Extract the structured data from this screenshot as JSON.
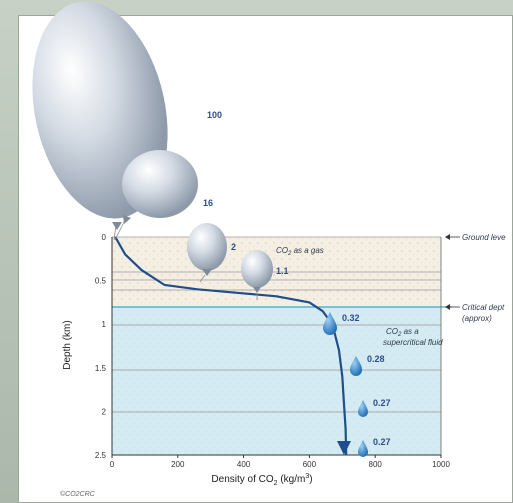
{
  "axes": {
    "ylabel": "Depth (km)",
    "xlabel_main": "Density of CO",
    "xlabel_sub": "2",
    "xlabel_unit": "(kg/m",
    "xlabel_unit_sup": "3",
    "xlabel_close": ")",
    "x_ticks": [
      "0",
      "200",
      "400",
      "600",
      "800",
      "1000"
    ],
    "y_ticks": [
      "0",
      "0.5",
      "1",
      "1.5",
      "2",
      "2.5"
    ]
  },
  "annotations": {
    "ground_level": "Ground leve",
    "critical_depth": "Critical dept",
    "critical_approx": "(approx)",
    "gas_prefix": "CO",
    "gas_sub": "2",
    "gas_suffix": " as a gas",
    "super_prefix": "CO",
    "super_sub": "2",
    "super_suffix": " as a",
    "super_line2": "supercritical fluid",
    "copyright": "©CO2CRC"
  },
  "balloons": [
    {
      "label": "100"
    },
    {
      "label": "16"
    },
    {
      "label": "2"
    },
    {
      "label": "1.1"
    }
  ],
  "droplets": [
    {
      "label": "0.32"
    },
    {
      "label": "0.28"
    },
    {
      "label": "0.27"
    },
    {
      "label": "0.27"
    }
  ],
  "chart_data": {
    "type": "line",
    "xlabel": "Density of CO2 (kg/m3)",
    "ylabel": "Depth (km)",
    "xlim": [
      0,
      1000
    ],
    "ylim": [
      2.5,
      0
    ],
    "series": [
      {
        "x": [
          10,
          40,
          90,
          160,
          260,
          380,
          500,
          600,
          640,
          670,
          690,
          700,
          705,
          710,
          712
        ],
        "y": [
          0.0,
          0.2,
          0.38,
          0.55,
          0.6,
          0.64,
          0.68,
          0.75,
          0.85,
          1.0,
          1.3,
          1.6,
          1.9,
          2.2,
          2.5
        ]
      }
    ],
    "colors": {
      "curve": "#1f4e8c",
      "water": "#cfe9f2",
      "gas": "#f4efe4"
    }
  }
}
